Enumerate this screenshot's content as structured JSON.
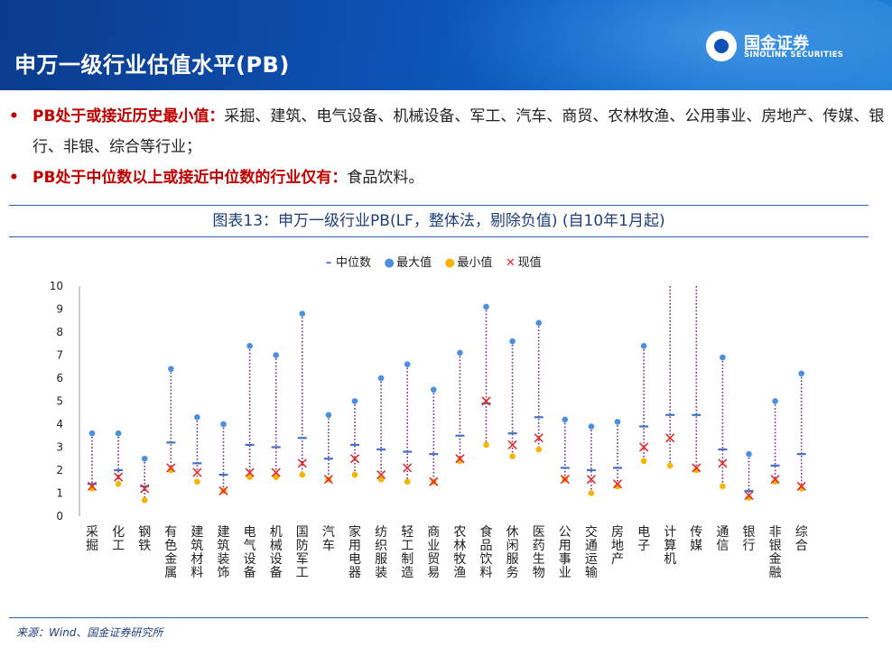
{
  "page": {
    "title": "申万一级行业估值水平(PB)"
  },
  "logo": {
    "name_cn": "国金证券",
    "name_en": "SINOLINK SECURITIES"
  },
  "bullets": [
    {
      "highlight": "PB处于或接近历史最小值：",
      "text": "采掘、建筑、电气设备、机械设备、军工、汽车、商贸、农林牧渔、公用事业、房地产、传媒、银行、非银、综合等行业；"
    },
    {
      "highlight": "PB处于中位数以上或接近中位数的行业仅有：",
      "text": "食品饮料。"
    }
  ],
  "chart_data": {
    "type": "scatter",
    "title": "图表13：申万一级行业PB(LF，整体法，剔除负值) (自10年1月起)",
    "legend_position": "top-center",
    "ylim": [
      0,
      10
    ],
    "yticks": [
      0,
      1,
      2,
      3,
      4,
      5,
      6,
      7,
      8,
      9,
      10
    ],
    "colors": {
      "median": "#4472c4",
      "max": "#4a8fe0",
      "min": "#f5b400",
      "current": "#e32c2c",
      "range_line": "#7b2c83"
    },
    "series": [
      {
        "name": "中位数",
        "key": "median"
      },
      {
        "name": "最大值",
        "key": "max"
      },
      {
        "name": "最小值",
        "key": "min"
      },
      {
        "name": "现值",
        "key": "current"
      }
    ],
    "categories": [
      "采掘",
      "化工",
      "钢铁",
      "有色金属",
      "建筑材料",
      "建筑装饰",
      "电气设备",
      "机械设备",
      "国防军工",
      "汽车",
      "家用电器",
      "纺织服装",
      "轻工制造",
      "商业贸易",
      "农林牧渔",
      "食品饮料",
      "休闲服务",
      "医药生物",
      "公用事业",
      "交通运输",
      "房地产",
      "电子",
      "计算机",
      "传媒",
      "通信",
      "银行",
      "非银金融",
      "综合"
    ],
    "median": [
      1.4,
      2.0,
      1.3,
      3.2,
      2.3,
      1.8,
      3.1,
      3.0,
      3.4,
      2.5,
      3.1,
      2.9,
      2.8,
      2.7,
      3.5,
      4.9,
      3.6,
      4.3,
      2.1,
      2.0,
      2.1,
      3.9,
      4.4,
      4.4,
      2.9,
      1.1,
      2.2,
      2.7
    ],
    "max": [
      3.6,
      3.6,
      2.5,
      6.4,
      4.3,
      4.0,
      7.4,
      7.0,
      8.8,
      4.4,
      5.0,
      6.0,
      6.6,
      5.5,
      7.1,
      9.1,
      7.6,
      8.4,
      4.2,
      3.9,
      4.1,
      7.4,
      10.0,
      10.0,
      6.9,
      2.7,
      5.0,
      6.2
    ],
    "min": [
      1.2,
      1.4,
      0.7,
      2.0,
      1.5,
      1.1,
      1.7,
      1.7,
      1.8,
      1.6,
      1.8,
      1.6,
      1.5,
      1.5,
      2.4,
      3.1,
      2.6,
      2.9,
      1.6,
      1.0,
      1.3,
      2.4,
      2.2,
      2.0,
      1.3,
      0.8,
      1.5,
      1.2
    ],
    "current": [
      1.3,
      1.7,
      1.2,
      2.1,
      1.9,
      1.1,
      1.9,
      1.9,
      2.3,
      1.6,
      2.5,
      1.8,
      2.1,
      1.5,
      2.5,
      5.0,
      3.1,
      3.4,
      1.6,
      1.6,
      1.4,
      3.0,
      3.4,
      2.1,
      2.3,
      0.9,
      1.6,
      1.3
    ]
  },
  "source": "来源：Wind、国金证券研究所"
}
